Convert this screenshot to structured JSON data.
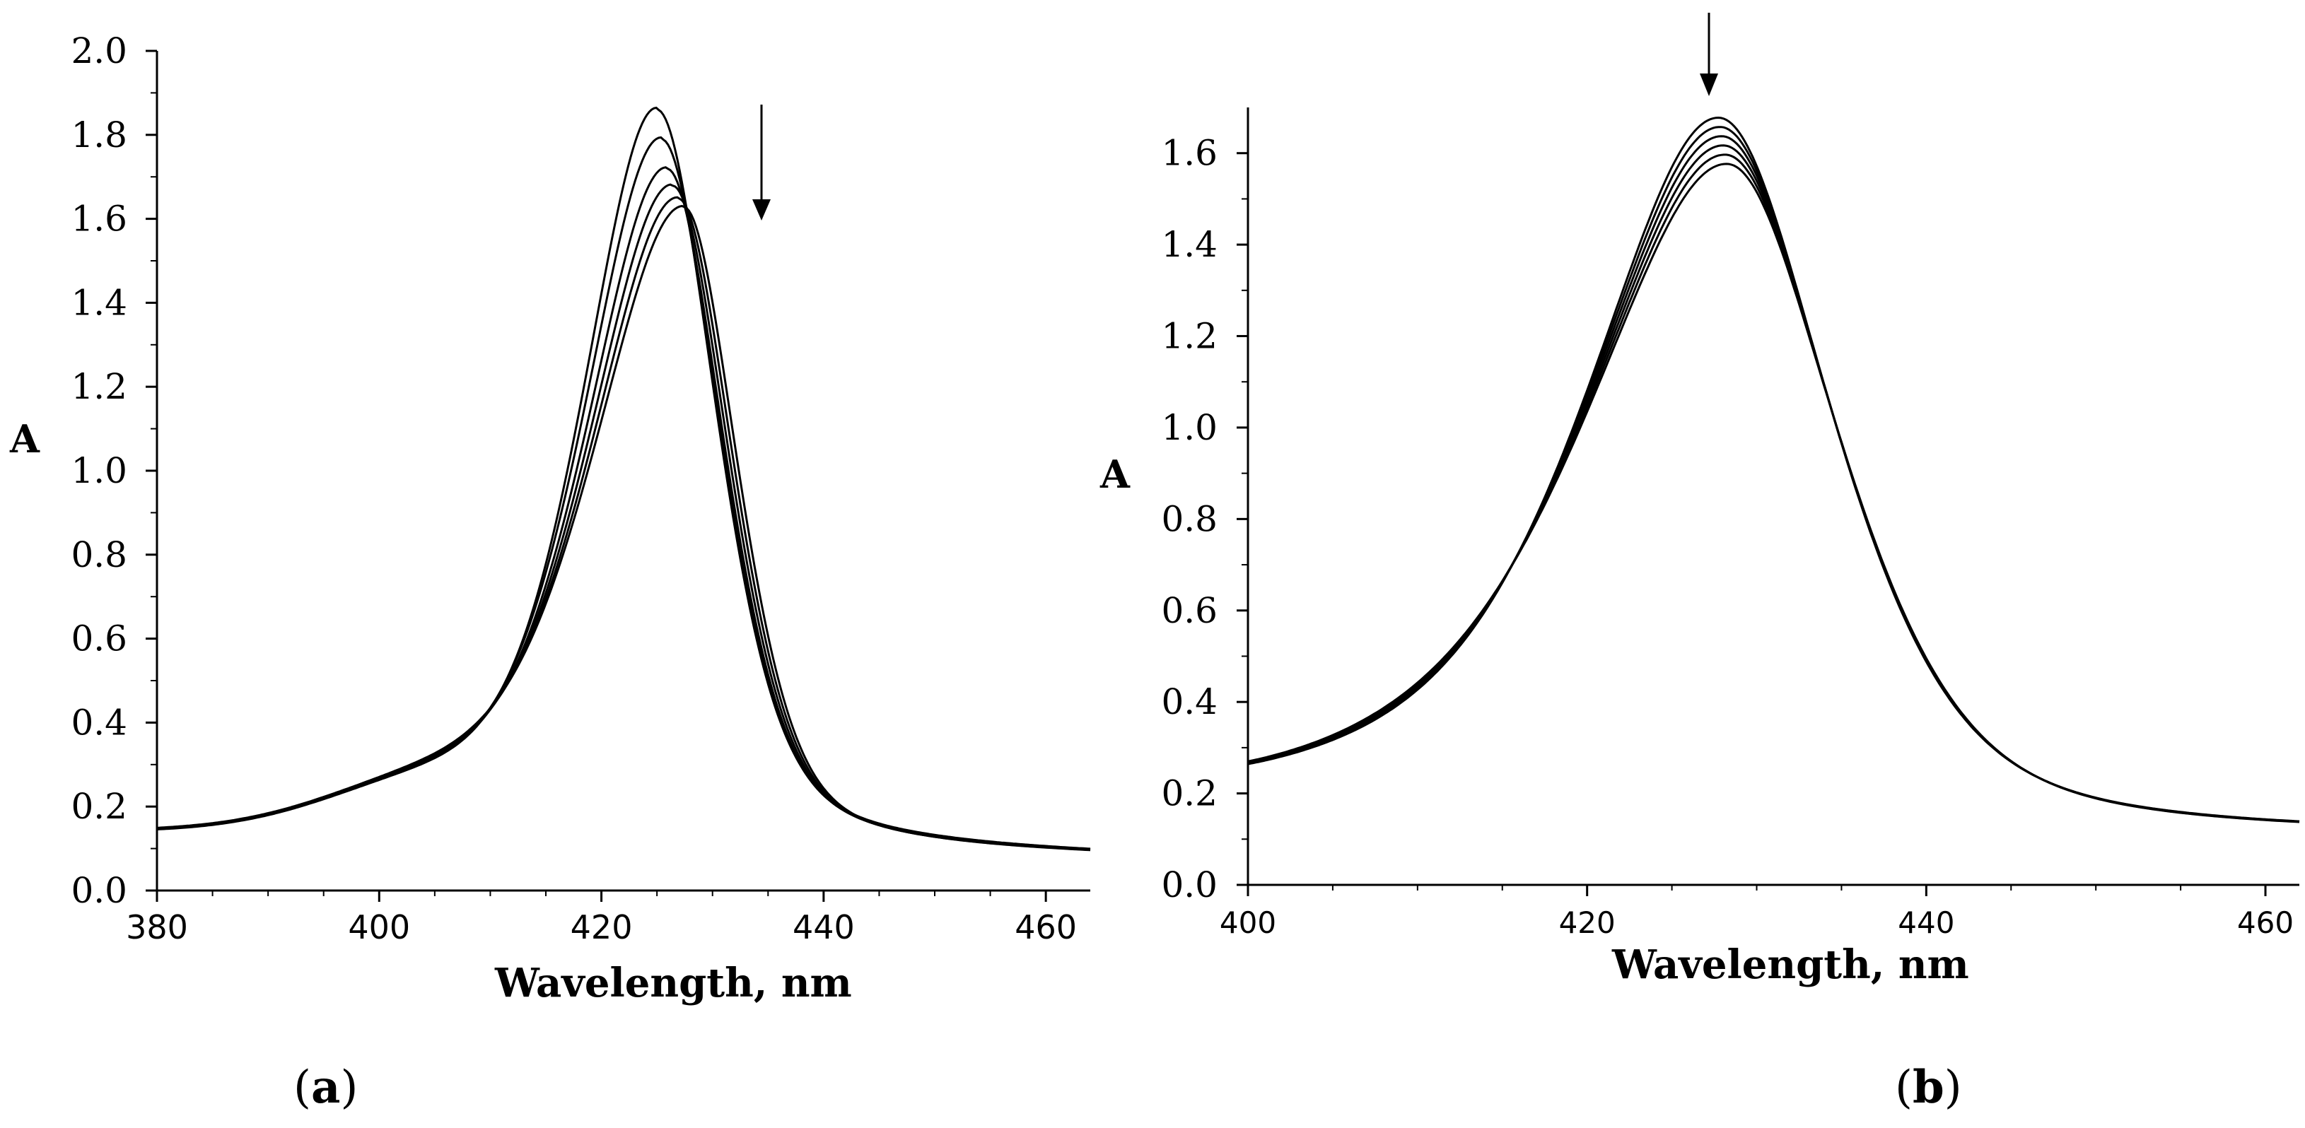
{
  "chart_data": [
    {
      "panel": "a",
      "type": "line",
      "xlabel": "Wavelength, nm",
      "ylabel": "A",
      "xlim": [
        380,
        464
      ],
      "ylim": [
        0,
        2.0
      ],
      "xticks": [
        "380",
        "400",
        "420",
        "440",
        "460"
      ],
      "yticks": [
        "0.0",
        "0.2",
        "0.4",
        "0.6",
        "0.8",
        "1.0",
        "1.2",
        "1.4",
        "1.6",
        "1.8",
        "2.0"
      ],
      "annotation": "arrow down (decreasing absorbance with titration)",
      "series": [
        {
          "name": "curve 1",
          "peak_x": 425.0,
          "peak_y": 1.88
        },
        {
          "name": "curve 2",
          "peak_x": 425.4,
          "peak_y": 1.81
        },
        {
          "name": "curve 3",
          "peak_x": 425.9,
          "peak_y": 1.74
        },
        {
          "name": "curve 4",
          "peak_x": 426.4,
          "peak_y": 1.7
        },
        {
          "name": "curve 5",
          "peak_x": 426.9,
          "peak_y": 1.67
        },
        {
          "name": "curve 6",
          "peak_x": 427.4,
          "peak_y": 1.65
        }
      ],
      "baseline": 0.12,
      "tail_value_at_464": 0.08
    },
    {
      "panel": "b",
      "type": "line",
      "xlabel": "Wavelength, nm",
      "ylabel": "A",
      "xlim": [
        400,
        462
      ],
      "ylim": [
        0,
        1.7
      ],
      "xticks": [
        "400",
        "420",
        "440",
        "460"
      ],
      "yticks": [
        "0.0",
        "0.2",
        "0.4",
        "0.6",
        "0.8",
        "1.0",
        "1.2",
        "1.4",
        "1.6"
      ],
      "annotation": "arrow down (decreasing absorbance with titration)",
      "series": [
        {
          "name": "curve 1",
          "peak_x": 427.8,
          "peak_y": 1.63
        },
        {
          "name": "curve 2",
          "peak_x": 427.9,
          "peak_y": 1.61
        },
        {
          "name": "curve 3",
          "peak_x": 428.0,
          "peak_y": 1.59
        },
        {
          "name": "curve 4",
          "peak_x": 428.1,
          "peak_y": 1.57
        },
        {
          "name": "curve 5",
          "peak_x": 428.2,
          "peak_y": 1.55
        },
        {
          "name": "curve 6",
          "peak_x": 428.3,
          "peak_y": 1.53
        }
      ],
      "value_at_400": 0.19,
      "tail_value_at_462": 0.09
    }
  ],
  "panel_labels": {
    "a": {
      "open": "(",
      "letter": "a",
      "close": ")"
    },
    "b": {
      "open": "(",
      "letter": "b",
      "close": ")"
    }
  }
}
